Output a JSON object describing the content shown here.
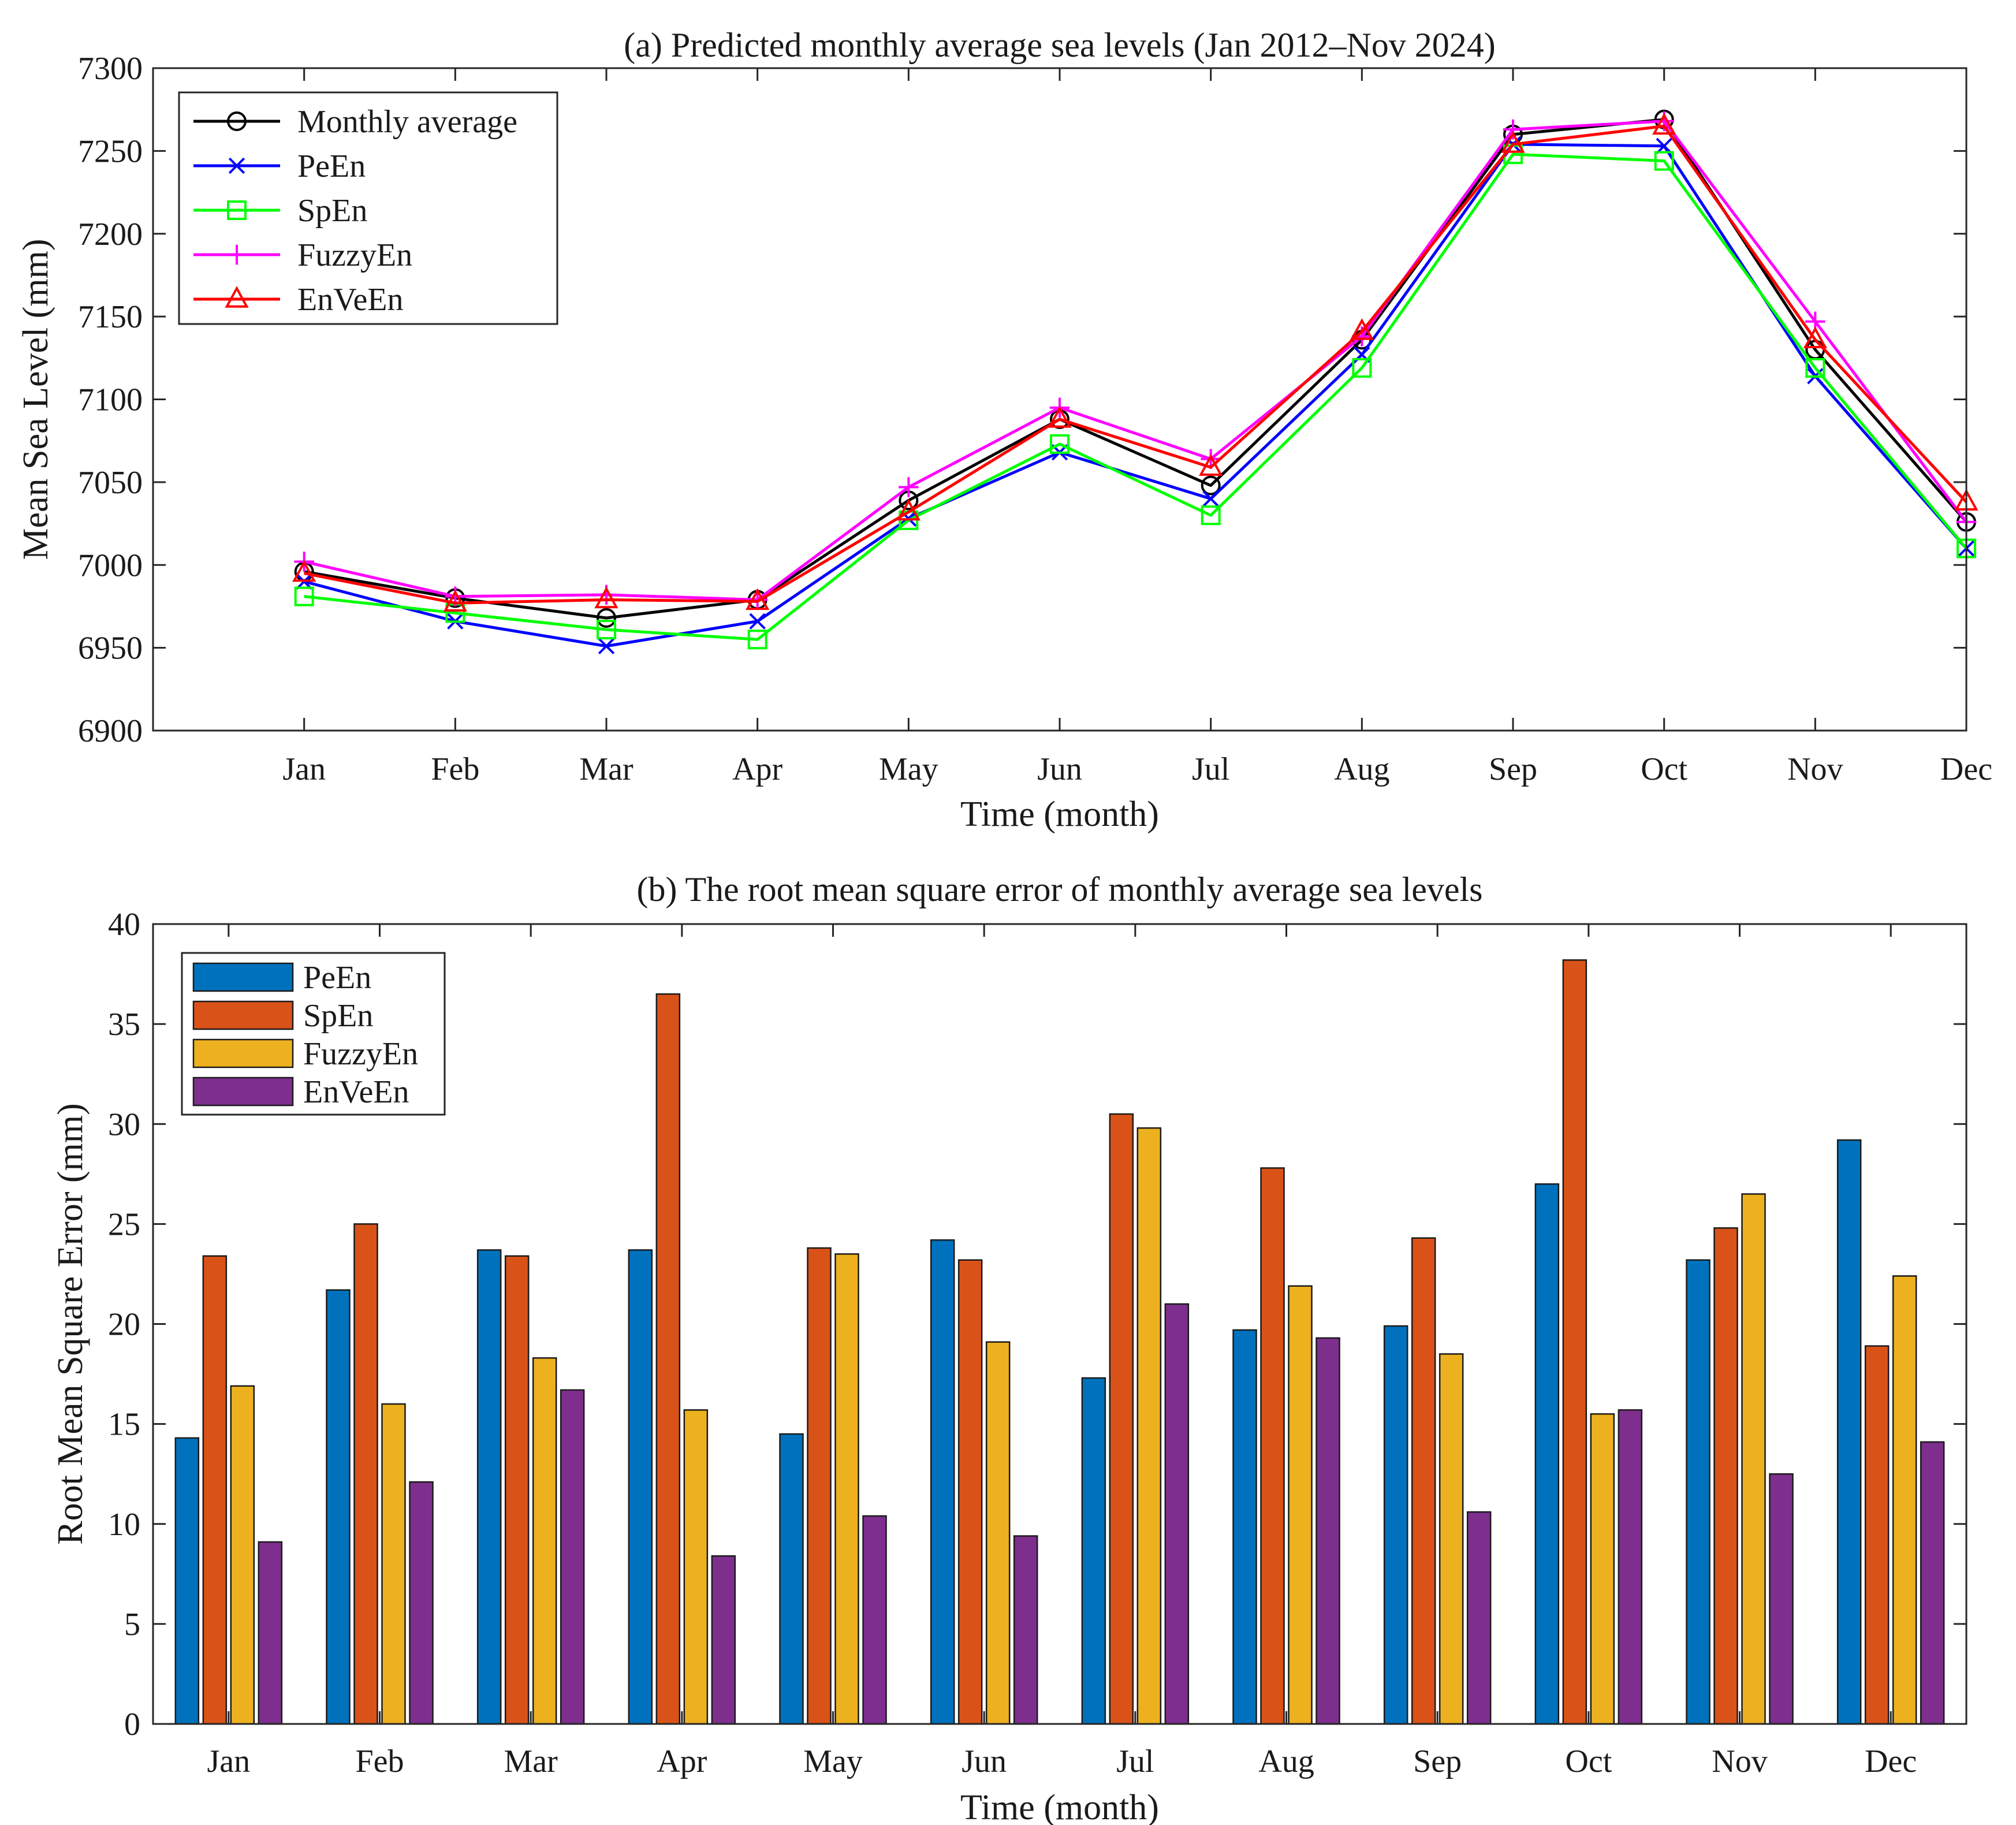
{
  "chart_data": [
    {
      "type": "line",
      "title": "(a) Predicted monthly average sea levels  (Jan 2012–Nov 2024)",
      "xlabel": "Time (month)",
      "ylabel": "Mean Sea Level (mm)",
      "categories": [
        "Jan",
        "Feb",
        "Mar",
        "Apr",
        "May",
        "Jun",
        "Jul",
        "Aug",
        "Sep",
        "Oct",
        "Nov",
        "Dec"
      ],
      "ylim": [
        6900,
        7300
      ],
      "yticks": [
        6900,
        6950,
        7000,
        7050,
        7100,
        7150,
        7200,
        7250,
        7300
      ],
      "grid": false,
      "legend_position": "top-left",
      "series": [
        {
          "name": "Monthly average",
          "color": "#000000",
          "marker": "circle",
          "values": [
            6996,
            6980,
            6968,
            6979,
            7039,
            7088,
            7048,
            7136,
            7260,
            7269,
            7130,
            7026
          ]
        },
        {
          "name": "PeEn",
          "color": "#0000ff",
          "marker": "x",
          "values": [
            6990,
            6966,
            6951,
            6966,
            7028,
            7068,
            7040,
            7127,
            7254,
            7253,
            7114,
            7010
          ]
        },
        {
          "name": "SpEn",
          "color": "#00ff00",
          "marker": "square",
          "values": [
            6981,
            6971,
            6961,
            6955,
            7027,
            7073,
            7030,
            7119,
            7248,
            7244,
            7119,
            7010
          ]
        },
        {
          "name": "FuzzyEn",
          "color": "#ff00ff",
          "marker": "plus",
          "values": [
            7002,
            6981,
            6982,
            6979,
            7047,
            7095,
            7064,
            7138,
            7263,
            7268,
            7147,
            7026
          ]
        },
        {
          "name": "EnVeEn",
          "color": "#ff0000",
          "marker": "triangle",
          "values": [
            6995,
            6977,
            6979,
            6978,
            7032,
            7088,
            7059,
            7141,
            7254,
            7265,
            7136,
            7038
          ]
        }
      ]
    },
    {
      "type": "bar",
      "title": "(b) The root mean square error of monthly average sea levels",
      "xlabel": "Time (month)",
      "ylabel": "Root Mean Square Error (mm)",
      "categories": [
        "Jan",
        "Feb",
        "Mar",
        "Apr",
        "May",
        "Jun",
        "Jul",
        "Aug",
        "Sep",
        "Oct",
        "Nov",
        "Dec"
      ],
      "ylim": [
        0,
        40
      ],
      "yticks": [
        0,
        5,
        10,
        15,
        20,
        25,
        30,
        35,
        40
      ],
      "grid": false,
      "legend_position": "top-left",
      "series": [
        {
          "name": "PeEn",
          "color": "#0072bd",
          "values": [
            14.3,
            21.7,
            23.7,
            23.7,
            14.5,
            24.2,
            17.3,
            19.7,
            19.9,
            27.0,
            23.2,
            29.2
          ]
        },
        {
          "name": "SpEn",
          "color": "#d95319",
          "values": [
            23.4,
            25.0,
            23.4,
            36.5,
            23.8,
            23.2,
            30.5,
            27.8,
            24.3,
            38.2,
            24.8,
            18.9
          ]
        },
        {
          "name": "FuzzyEn",
          "color": "#edb120",
          "values": [
            16.9,
            16.0,
            18.3,
            15.7,
            23.5,
            19.1,
            29.8,
            21.9,
            18.5,
            15.5,
            26.5,
            22.4
          ]
        },
        {
          "name": "EnVeEn",
          "color": "#7e2f8e",
          "values": [
            9.1,
            12.1,
            16.7,
            8.4,
            10.4,
            9.4,
            21.0,
            19.3,
            10.6,
            15.7,
            12.5,
            14.1
          ]
        }
      ]
    }
  ]
}
